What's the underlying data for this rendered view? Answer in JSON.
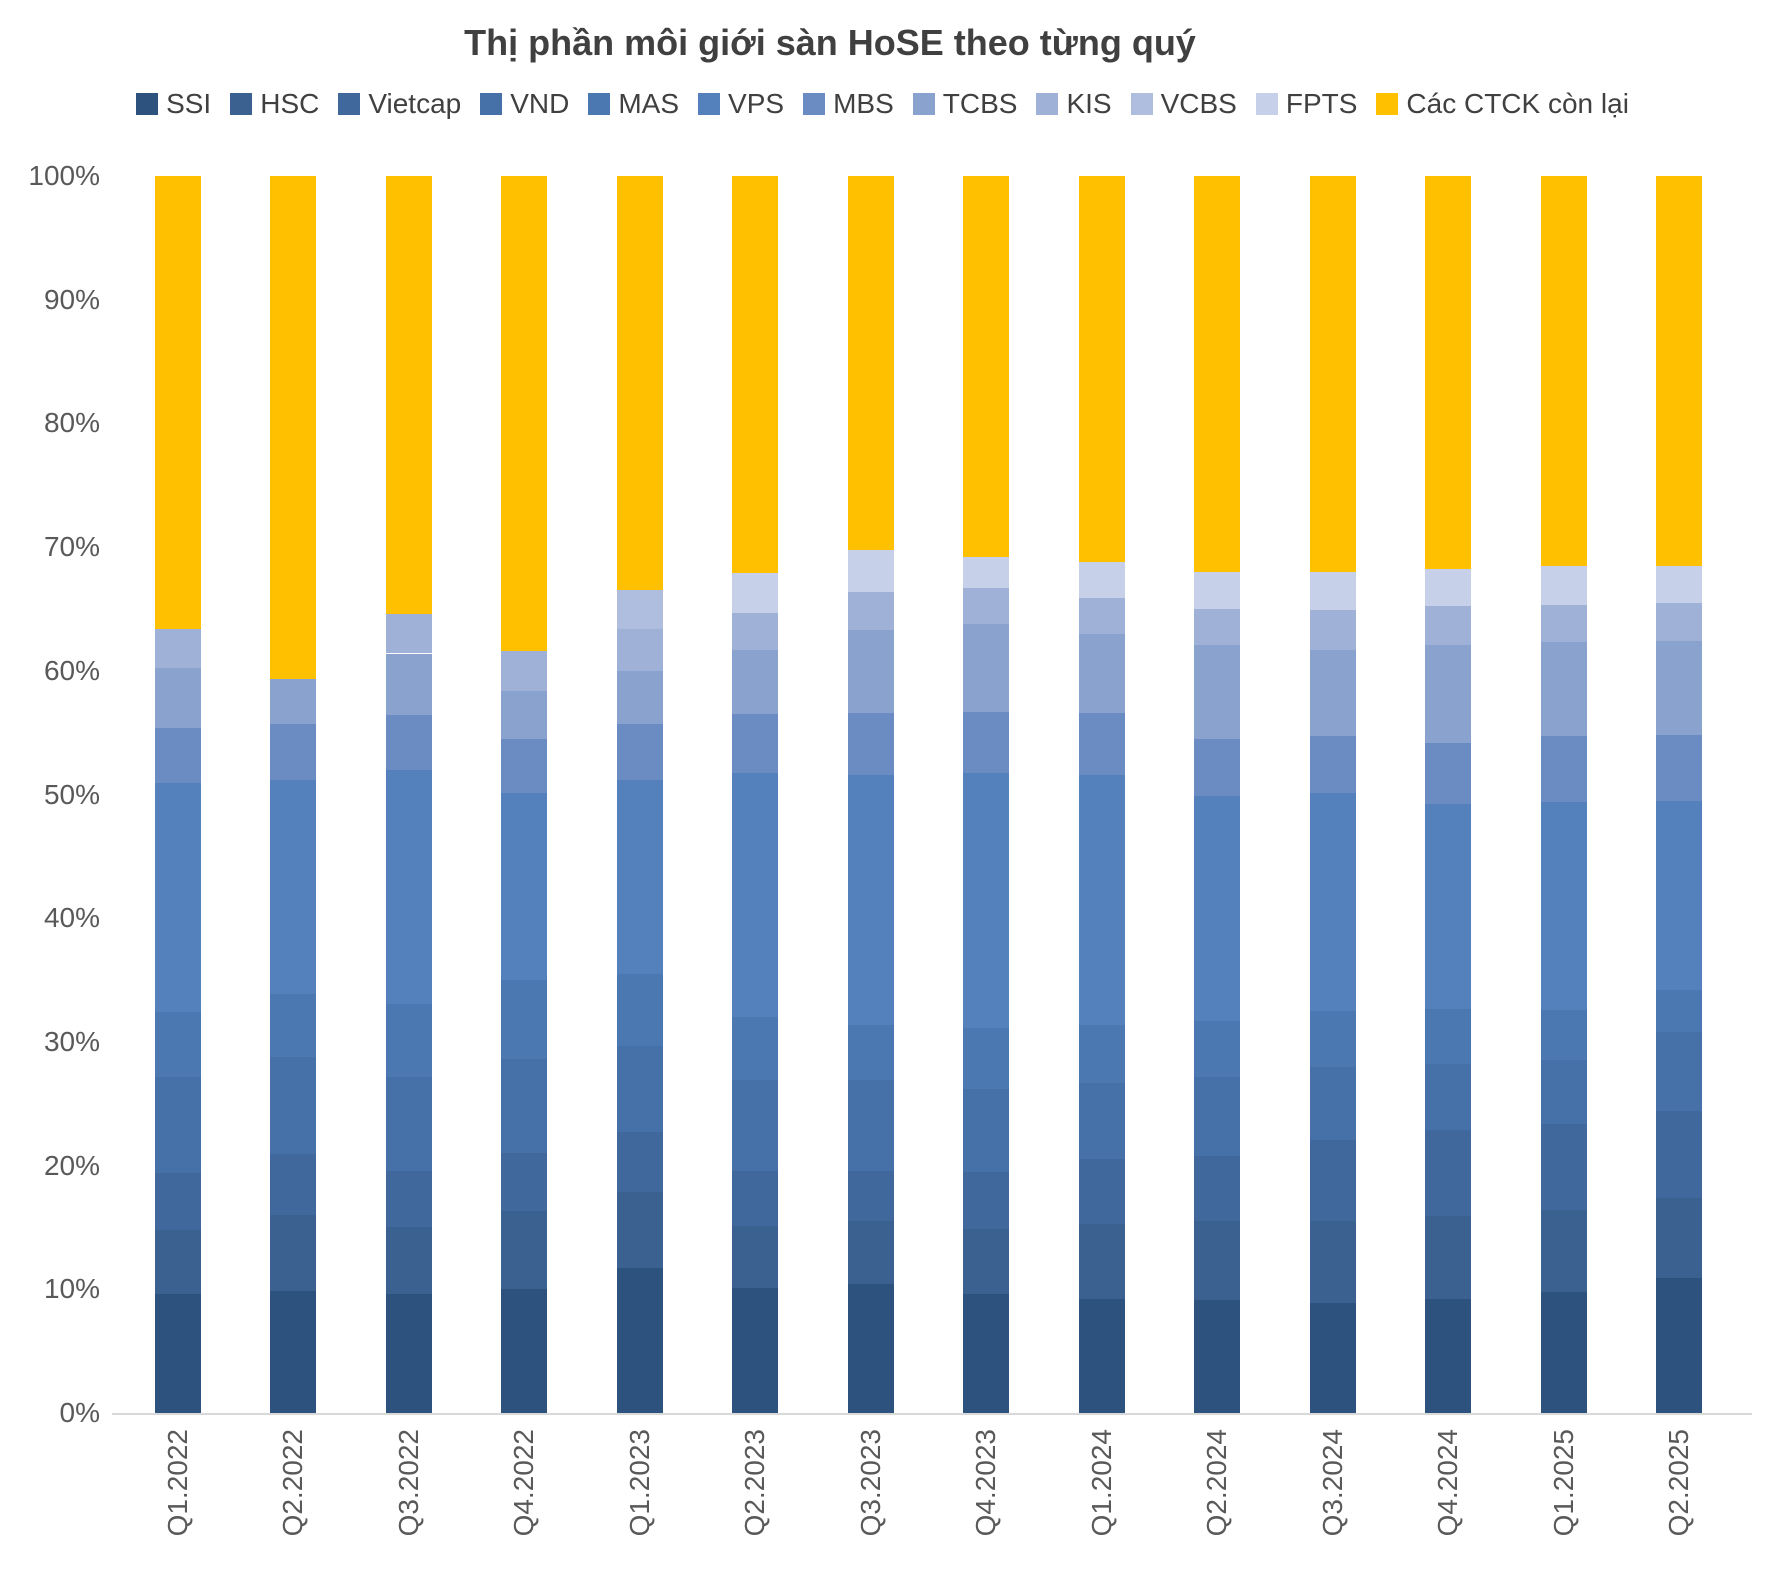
{
  "title": "Thị phần môi giới sàn HoSE theo từng quý",
  "chart_data": {
    "type": "bar",
    "subtype": "stacked-100",
    "title": "Thị phần môi giới sàn HoSE theo từng quý",
    "xlabel": "",
    "ylabel": "",
    "ylim": [
      0,
      100
    ],
    "y_ticks": [
      0,
      10,
      20,
      30,
      40,
      50,
      60,
      70,
      80,
      90,
      100
    ],
    "y_tick_suffix": "%",
    "grid": false,
    "legend_position": "top",
    "categories": [
      "Q1.2022",
      "Q2.2022",
      "Q3.2022",
      "Q4.2022",
      "Q1.2023",
      "Q2.2023",
      "Q3.2023",
      "Q4.2023",
      "Q1.2024",
      "Q2.2024",
      "Q3.2024",
      "Q4.2024",
      "Q1.2025",
      "Q2.2025"
    ],
    "series": [
      {
        "name": "SSI",
        "color": "#2E527E",
        "values": [
          9.6,
          9.9,
          9.6,
          10.0,
          11.7,
          10.1,
          10.4,
          9.6,
          9.2,
          9.1,
          8.9,
          9.2,
          9.8,
          10.9
        ]
      },
      {
        "name": "HSC",
        "color": "#3A6190",
        "values": [
          5.2,
          6.1,
          5.4,
          6.3,
          6.2,
          5.0,
          5.1,
          5.3,
          6.1,
          6.4,
          6.6,
          6.7,
          6.6,
          6.5
        ]
      },
      {
        "name": "Vietcap",
        "color": "#40689C",
        "values": [
          4.6,
          4.9,
          4.6,
          4.7,
          4.8,
          4.5,
          4.1,
          4.6,
          5.2,
          5.3,
          6.6,
          7.0,
          7.0,
          7.0
        ]
      },
      {
        "name": "VND",
        "color": "#4670A8",
        "values": [
          7.8,
          7.9,
          7.6,
          7.6,
          7.0,
          7.3,
          7.3,
          6.7,
          6.2,
          6.4,
          5.9,
          5.3,
          5.1,
          6.4
        ]
      },
      {
        "name": "MAS",
        "color": "#4C78B2",
        "values": [
          5.2,
          5.1,
          5.9,
          6.4,
          5.8,
          5.1,
          4.5,
          4.9,
          4.7,
          4.5,
          4.5,
          4.5,
          4.1,
          3.4
        ]
      },
      {
        "name": "VPS",
        "color": "#5480BC",
        "values": [
          18.5,
          17.3,
          18.9,
          15.1,
          15.7,
          19.7,
          20.2,
          20.6,
          20.2,
          18.2,
          17.6,
          16.5,
          16.8,
          15.3
        ]
      },
      {
        "name": "MBS",
        "color": "#6B8CC3",
        "values": [
          4.5,
          4.5,
          4.4,
          4.4,
          4.5,
          4.8,
          5.0,
          5.0,
          5.0,
          4.6,
          4.6,
          5.0,
          5.3,
          5.3
        ]
      },
      {
        "name": "TCBS",
        "color": "#8AA2CE",
        "values": [
          4.8,
          3.6,
          5.0,
          3.9,
          4.3,
          5.2,
          6.7,
          7.1,
          6.4,
          7.6,
          7.0,
          7.9,
          7.6,
          7.6
        ]
      },
      {
        "name": "KIS",
        "color": "#A0B1D7",
        "values": [
          3.2,
          0,
          3.2,
          3.2,
          3.4,
          3.0,
          3.1,
          2.9,
          2.9,
          2.9,
          3.2,
          3.1,
          3.0,
          3.1
        ]
      },
      {
        "name": "VCBS",
        "color": "#AFBDDE",
        "values": [
          0,
          0,
          0,
          0,
          3.1,
          0,
          0,
          0,
          0,
          0,
          0,
          0,
          0,
          0
        ]
      },
      {
        "name": "FPTS",
        "color": "#C6D0E8",
        "values": [
          0,
          0,
          0,
          0,
          0,
          3.2,
          3.4,
          2.5,
          2.9,
          3.0,
          3.1,
          3.0,
          3.2,
          3.0
        ]
      },
      {
        "name": "Các CTCK còn lại",
        "color": "#FFC000",
        "values": [
          36.6,
          40.7,
          35.4,
          38.4,
          33.5,
          32.1,
          30.2,
          30.8,
          31.2,
          32.0,
          32.0,
          31.8,
          31.5,
          31.5
        ]
      }
    ]
  }
}
